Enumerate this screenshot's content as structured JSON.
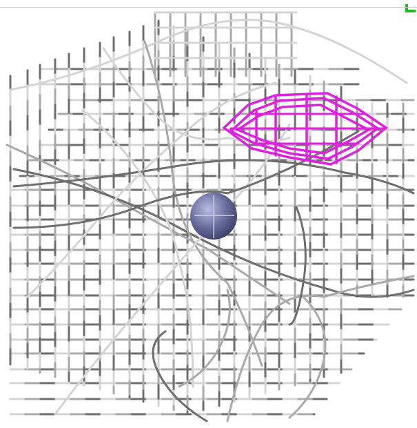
{
  "scene": {
    "background": "#ffffff",
    "mesh_color_light": "#d4d4d4",
    "mesh_color_mid": "#a9a9a9",
    "mesh_color_dark": "#6e6e6e",
    "highlight_color": "#dd22dd",
    "sphere_color": "#6b6f9e",
    "corner_marker_color": "#22bb22"
  }
}
